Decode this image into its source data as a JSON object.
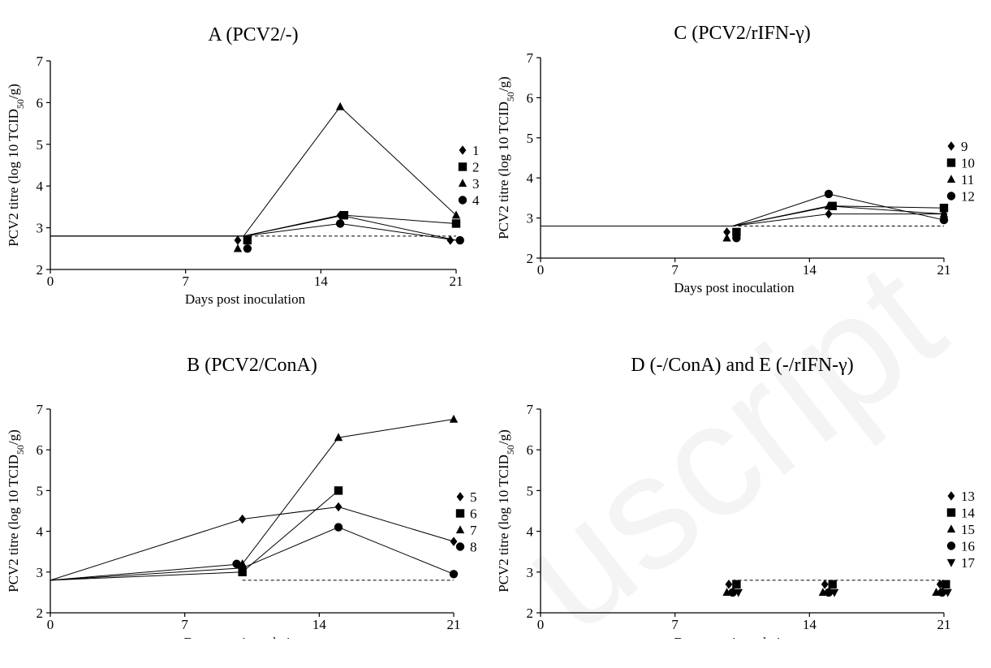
{
  "chart_data": [
    {
      "type": "line",
      "title": "A (PCV2/-)",
      "xlabel": "Days post inoculation",
      "ylabel": "PCV2 titre (log 10 TCID50/g)",
      "xlim": [
        0,
        21
      ],
      "ylim": [
        2,
        7
      ],
      "xticks": [
        0,
        7,
        14,
        21
      ],
      "yticks": [
        2,
        3,
        4,
        5,
        6,
        7
      ],
      "detection_limit": 2.8,
      "legend_position": "right",
      "series": [
        {
          "name": "1",
          "marker": "diamond",
          "points": [
            [
              0,
              2.8
            ],
            [
              10,
              2.8
            ],
            [
              15,
              3.3
            ],
            [
              21,
              2.7
            ]
          ],
          "below_limit": [
            [
              9.7,
              2.7
            ],
            [
              20.7,
              2.7
            ]
          ]
        },
        {
          "name": "2",
          "marker": "square",
          "points": [
            [
              0,
              2.8
            ],
            [
              10,
              2.8
            ],
            [
              15.2,
              3.3
            ],
            [
              21,
              3.1
            ]
          ],
          "below_limit": [
            [
              10.2,
              2.7
            ]
          ]
        },
        {
          "name": "3",
          "marker": "triangle",
          "points": [
            [
              0,
              2.8
            ],
            [
              10,
              2.8
            ],
            [
              15,
              5.9
            ],
            [
              21,
              3.3
            ]
          ],
          "below_limit": [
            [
              9.7,
              2.5
            ]
          ]
        },
        {
          "name": "4",
          "marker": "circle",
          "points": [
            [
              0,
              2.8
            ],
            [
              10,
              2.8
            ],
            [
              15,
              3.1
            ],
            [
              21,
              2.7
            ]
          ],
          "below_limit": [
            [
              10.2,
              2.5
            ],
            [
              21.2,
              2.7
            ]
          ]
        }
      ]
    },
    {
      "type": "line",
      "title": "C (PCV2/rIFN-γ)",
      "xlabel": "Days post inoculation",
      "ylabel": "PCV2 titre (log 10 TCID50/g)",
      "xlim": [
        0,
        21
      ],
      "ylim": [
        2,
        7
      ],
      "xticks": [
        0,
        7,
        14,
        21
      ],
      "yticks": [
        2,
        3,
        4,
        5,
        6,
        7
      ],
      "detection_limit": 2.8,
      "legend_position": "right",
      "series": [
        {
          "name": "9",
          "marker": "diamond",
          "points": [
            [
              0,
              2.8
            ],
            [
              10,
              2.8
            ],
            [
              15,
              3.1
            ],
            [
              21,
              3.1
            ]
          ],
          "below_limit": [
            [
              9.7,
              2.65
            ]
          ]
        },
        {
          "name": "10",
          "marker": "square",
          "points": [
            [
              0,
              2.8
            ],
            [
              10,
              2.8
            ],
            [
              15.2,
              3.3
            ],
            [
              21,
              3.25
            ]
          ],
          "below_limit": [
            [
              10.2,
              2.65
            ]
          ]
        },
        {
          "name": "11",
          "marker": "triangle",
          "points": [
            [
              0,
              2.8
            ],
            [
              10,
              2.8
            ],
            [
              15,
              3.3
            ],
            [
              21,
              3.1
            ]
          ],
          "below_limit": [
            [
              9.7,
              2.5
            ]
          ]
        },
        {
          "name": "12",
          "marker": "circle",
          "points": [
            [
              0,
              2.8
            ],
            [
              10,
              2.8
            ],
            [
              15,
              3.6
            ],
            [
              21,
              2.95
            ]
          ],
          "below_limit": [
            [
              10.2,
              2.5
            ]
          ]
        }
      ]
    },
    {
      "type": "line",
      "title": "B (PCV2/ConA)",
      "xlabel": "Days post inoculation",
      "ylabel": "PCV2 titre (log 10 TCID50/g)",
      "xlim": [
        0,
        21
      ],
      "ylim": [
        2,
        7
      ],
      "xticks": [
        0,
        7,
        14,
        21
      ],
      "yticks": [
        2,
        3,
        4,
        5,
        6,
        7
      ],
      "detection_limit": 2.8,
      "legend_position": "right",
      "series": [
        {
          "name": "5",
          "marker": "diamond",
          "points": [
            [
              0,
              2.8
            ],
            [
              10,
              4.3
            ],
            [
              15,
              4.6
            ],
            [
              21,
              3.75
            ]
          ],
          "below_limit": []
        },
        {
          "name": "6",
          "marker": "square",
          "points": [
            [
              0,
              2.8
            ],
            [
              10,
              3.0
            ],
            [
              15,
              5.0
            ]
          ],
          "below_limit": []
        },
        {
          "name": "7",
          "marker": "triangle",
          "points": [
            [
              0,
              2.8
            ],
            [
              10,
              3.2
            ],
            [
              15,
              6.3
            ],
            [
              21,
              6.75
            ]
          ],
          "below_limit": []
        },
        {
          "name": "8",
          "marker": "circle",
          "points": [
            [
              0,
              2.8
            ],
            [
              10,
              3.1
            ],
            [
              15,
              4.1
            ],
            [
              21,
              2.95
            ]
          ],
          "below_limit": [],
          "extra_markers": [
            [
              9.7,
              3.2
            ]
          ]
        }
      ]
    },
    {
      "type": "line",
      "title": "D (-/ConA) and E (-/rIFN-γ)",
      "xlabel": "Days post inoculation",
      "ylabel": "PCV2 titre (log 10 TCID50/g)",
      "xlim": [
        0,
        21
      ],
      "ylim": [
        2,
        7
      ],
      "xticks": [
        0,
        7,
        14,
        21
      ],
      "yticks": [
        2,
        3,
        4,
        5,
        6,
        7
      ],
      "detection_limit": 2.8,
      "legend_position": "right",
      "series": [
        {
          "name": "13",
          "marker": "diamond",
          "points": [],
          "below_limit": [
            [
              9.8,
              2.7
            ],
            [
              14.8,
              2.7
            ],
            [
              20.8,
              2.7
            ]
          ]
        },
        {
          "name": "14",
          "marker": "square",
          "points": [],
          "below_limit": [
            [
              10.2,
              2.7
            ],
            [
              15.2,
              2.7
            ],
            [
              21.1,
              2.7
            ]
          ]
        },
        {
          "name": "15",
          "marker": "triangle",
          "points": [],
          "below_limit": [
            [
              9.7,
              2.5
            ],
            [
              14.7,
              2.5
            ],
            [
              20.6,
              2.5
            ]
          ]
        },
        {
          "name": "16",
          "marker": "circle",
          "points": [],
          "below_limit": [
            [
              10.0,
              2.5
            ],
            [
              15.0,
              2.5
            ],
            [
              20.9,
              2.5
            ]
          ]
        },
        {
          "name": "17",
          "marker": "triangle-down",
          "points": [],
          "below_limit": [
            [
              10.3,
              2.5
            ],
            [
              15.3,
              2.5
            ],
            [
              21.2,
              2.5
            ]
          ]
        }
      ]
    }
  ]
}
